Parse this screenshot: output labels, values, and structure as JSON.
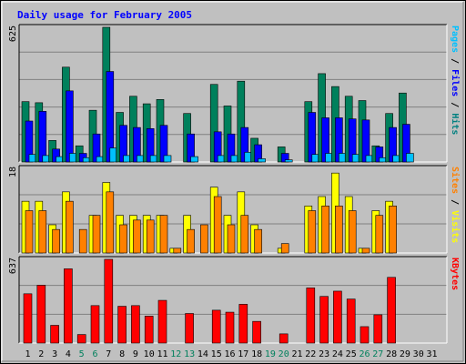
{
  "chart_data": {
    "type": "bar",
    "title": "Daily usage for February 2005",
    "days": [
      "1",
      "2",
      "3",
      "4",
      "5",
      "6",
      "7",
      "8",
      "9",
      "10",
      "11",
      "12",
      "13",
      "14",
      "15",
      "16",
      "17",
      "18",
      "19",
      "20",
      "21",
      "22",
      "23",
      "24",
      "25",
      "26",
      "27",
      "28",
      "29",
      "30",
      "31"
    ],
    "weekend_days": [
      5,
      6,
      12,
      13,
      19,
      20,
      26,
      27
    ],
    "panels": [
      {
        "name": "hits-files-pages",
        "ymax": 625,
        "ymax_label": "625",
        "right_label_parts": [
          {
            "text": "Pages",
            "color": "#00c0ff"
          },
          {
            "text": " / ",
            "color": "#000000"
          },
          {
            "text": "Files",
            "color": "#0000ff"
          },
          {
            "text": " / ",
            "color": "#000000"
          },
          {
            "text": "Hits",
            "color": "#008080"
          }
        ],
        "series": [
          {
            "name": "Hits",
            "color": "#00805c",
            "values": [
              280,
              275,
              100,
              440,
              75,
              240,
              625,
              230,
              305,
              270,
              290,
              0,
              225,
              0,
              360,
              260,
              375,
              110,
              0,
              70,
              0,
              280,
              410,
              350,
              305,
              285,
              75,
              225,
              320,
              0,
              0
            ]
          },
          {
            "name": "Files",
            "color": "#0000ff",
            "values": [
              190,
              235,
              60,
              330,
              40,
              130,
              420,
              170,
              160,
              155,
              170,
              0,
              130,
              0,
              140,
              130,
              160,
              80,
              0,
              40,
              0,
              230,
              205,
              205,
              200,
              195,
              70,
              160,
              175,
              0,
              0
            ]
          },
          {
            "name": "Pages",
            "color": "#00c0ff",
            "values": [
              35,
              30,
              25,
              40,
              20,
              25,
              65,
              30,
              30,
              30,
              30,
              0,
              25,
              0,
              30,
              30,
              45,
              15,
              0,
              10,
              0,
              35,
              40,
              40,
              35,
              30,
              20,
              30,
              40,
              0,
              0
            ]
          }
        ]
      },
      {
        "name": "visits-sites",
        "ymax": 18,
        "ymax_label": "18",
        "right_label_parts": [
          {
            "text": "Sites",
            "color": "#ff8000"
          },
          {
            "text": " / ",
            "color": "#000000"
          },
          {
            "text": "Visits",
            "color": "#ffff00"
          }
        ],
        "series": [
          {
            "name": "Visits",
            "color": "#ffff00",
            "values": [
              11,
              11,
              6,
              13,
              0,
              8,
              15,
              8,
              8,
              8,
              8,
              1,
              8,
              0,
              14,
              8,
              13,
              6,
              0,
              1,
              0,
              10,
              12,
              17,
              12,
              1,
              9,
              11,
              0,
              0,
              0
            ]
          },
          {
            "name": "Sites",
            "color": "#ff8000",
            "values": [
              9,
              9,
              5,
              11,
              5,
              8,
              13,
              6,
              7,
              7,
              8,
              1,
              5,
              6,
              12,
              6,
              8,
              5,
              0,
              2,
              0,
              9,
              10,
              10,
              9,
              1,
              8,
              10,
              0,
              0,
              0
            ]
          }
        ]
      },
      {
        "name": "kbytes",
        "ymax": 637,
        "ymax_label": "637",
        "right_label_parts": [
          {
            "text": "KBytes",
            "color": "#ff0000"
          }
        ],
        "series": [
          {
            "name": "KBytes",
            "color": "#ff0000",
            "values": [
              375,
              440,
              135,
              565,
              65,
              285,
              637,
              280,
              285,
              205,
              325,
              0,
              225,
              0,
              250,
              235,
              295,
              165,
              0,
              70,
              0,
              420,
              355,
              395,
              335,
              125,
              215,
              500,
              0,
              0,
              0
            ]
          }
        ]
      }
    ]
  }
}
